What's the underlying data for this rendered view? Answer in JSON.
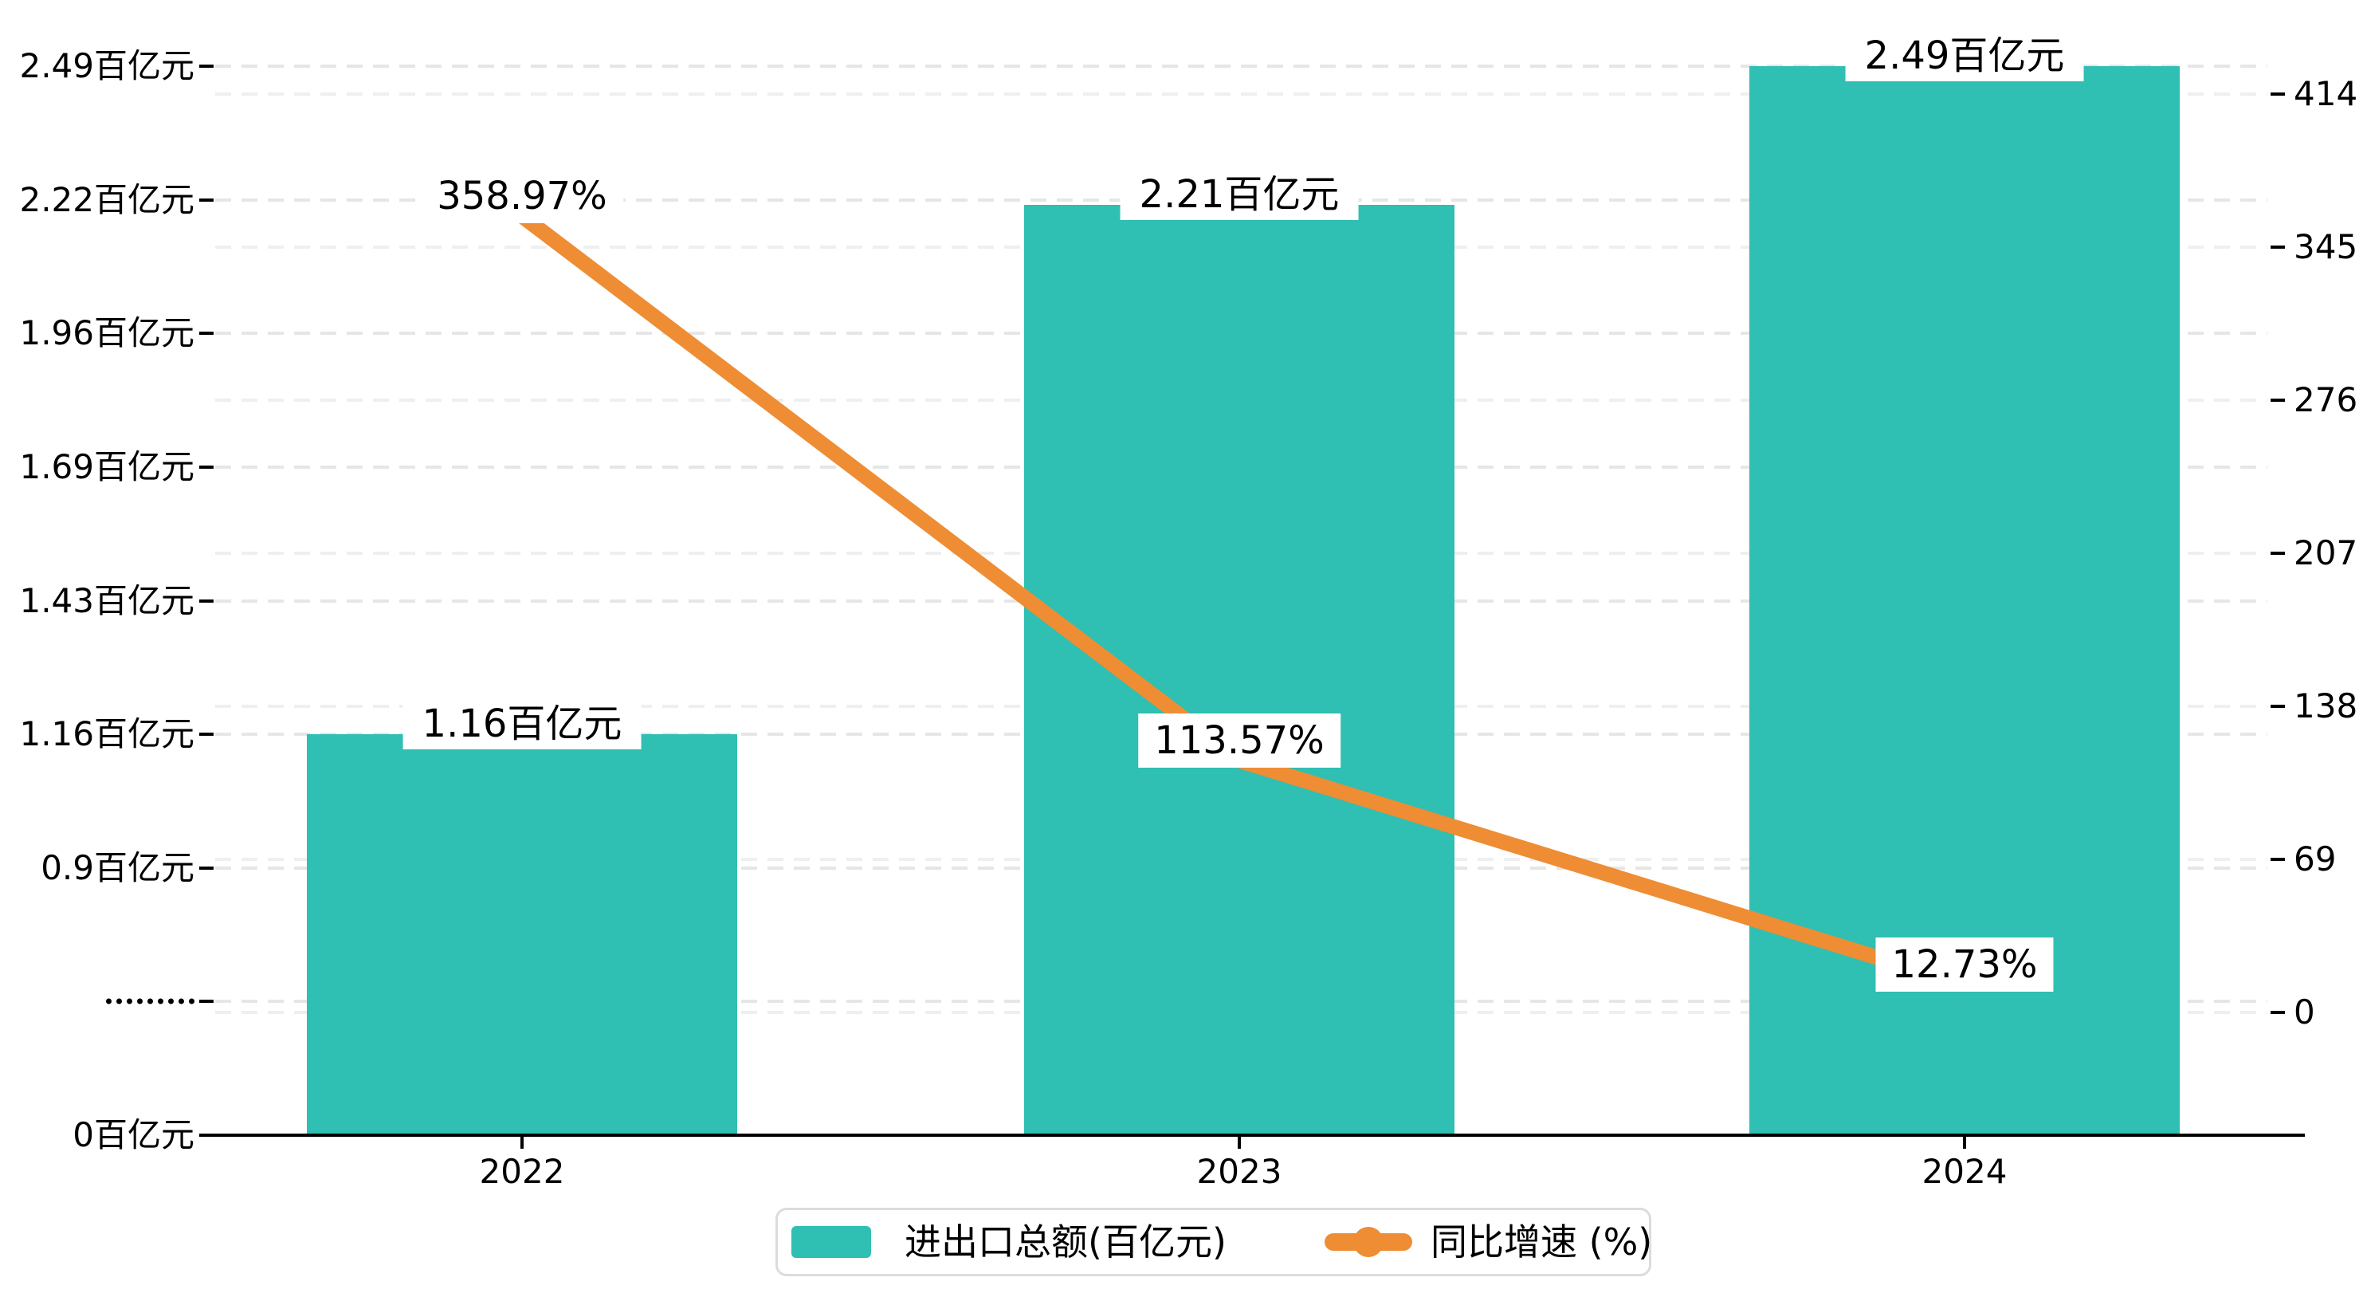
{
  "chart_data": {
    "type": "combo",
    "title": "",
    "categories": [
      "2022",
      "2023",
      "2024"
    ],
    "series": [
      {
        "name": "进出口总额(百亿元)",
        "type": "bar",
        "axis": "left",
        "unit": "百亿元",
        "values": [
          1.16,
          2.21,
          2.49
        ],
        "data_labels": [
          "1.16百亿元",
          "2.21百亿元",
          "2.49百亿元"
        ],
        "color": "#2fbfb3"
      },
      {
        "name": "同比增速 (%)",
        "type": "line",
        "axis": "right",
        "unit": "%",
        "values": [
          358.97,
          113.57,
          12.73
        ],
        "data_labels": [
          "358.97%",
          "113.57%",
          "12.73%"
        ],
        "color": "#ee8d34"
      }
    ],
    "left_axis": {
      "tick_labels_top_to_bottom": [
        "2.49百亿元",
        "2.22百亿元",
        "1.96百亿元",
        "1.69百亿元",
        "1.43百亿元",
        "1.16百亿元",
        "0.9百亿元",
        "·········",
        "0百亿元"
      ],
      "axis_break_marker": "·········"
    },
    "right_axis": {
      "tick_labels_top_to_bottom": [
        "414",
        "345",
        "276",
        "207",
        "138",
        "69",
        "0"
      ],
      "min": 0,
      "max": 414,
      "step": 69
    },
    "grid": true,
    "legend_position": "bottom"
  },
  "legend": {
    "items": [
      {
        "label": "进出口总额(百亿元)",
        "type": "bar",
        "color": "#2fbfb3"
      },
      {
        "label": "同比增速 (%)",
        "type": "line",
        "color": "#ee8d34"
      }
    ]
  },
  "colors": {
    "bar": "#2fbfb3",
    "line": "#ee8d34",
    "text": "#000000",
    "grid_left": "#e6e6e6",
    "grid_right": "#efefef",
    "axis": "#000000",
    "label_bg": "#ffffff",
    "legend_border": "#dcdcdc"
  }
}
